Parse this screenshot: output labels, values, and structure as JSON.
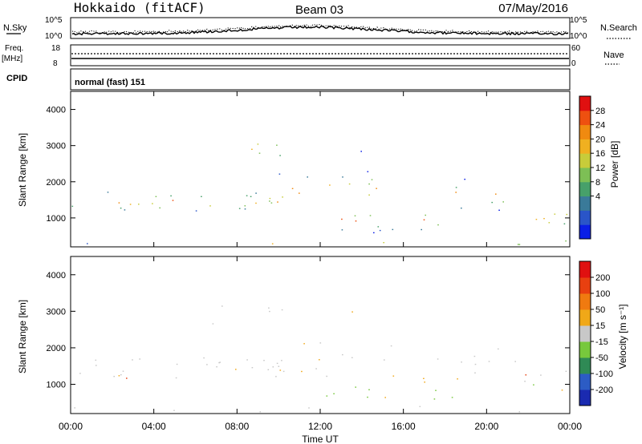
{
  "header": {
    "station": "Hokkaido (fitACF)",
    "beam": "Beam 03",
    "date": "07/May/2016"
  },
  "top_panels": {
    "nsky_label": "N.Sky",
    "nsky_ticks": [
      "10^5",
      "10^0"
    ],
    "nsearch_label": "N.Search",
    "nsearch_ticks": [
      "10^5",
      "10^0"
    ],
    "freq_label": "Freq.",
    "freq_unit": "[MHz]",
    "freq_ticks": [
      "18",
      "8"
    ],
    "nave_label": "Nave",
    "nave_ticks": [
      "60",
      "0"
    ],
    "cpid_label": "CPID",
    "cpid_value": "normal (fast) 151"
  },
  "chart_data": [
    {
      "type": "heatmap",
      "panel": "power",
      "ylabel": "Slant Range [km]",
      "xlabel": "",
      "ylim": [
        200,
        4500
      ],
      "xlim": [
        0,
        24
      ],
      "yticks": [
        1000,
        2000,
        3000,
        4000
      ],
      "xticks": [
        0,
        4,
        8,
        12,
        16,
        20,
        24
      ],
      "colorbar": {
        "label": "Power [dB]",
        "ticks": [
          "28",
          "24",
          "20",
          "16",
          "12",
          "8",
          "4"
        ],
        "colors": [
          "#0a1ee6",
          "#2a55c8",
          "#3a7a99",
          "#47a06a",
          "#7dbf55",
          "#c8cc3a",
          "#f0b020",
          "#f08a10",
          "#ee5010",
          "#e01010"
        ]
      },
      "features": [
        {
          "from_h": 0.0,
          "to_h": 10.0,
          "range_km": [
            1100,
            1800
          ]
        },
        {
          "from_h": 6.8,
          "to_h": 10.2,
          "range_km": [
            2600,
            3300
          ]
        },
        {
          "from_h": 12.2,
          "to_h": 19.0,
          "range_km": [
            600,
            1300
          ]
        },
        {
          "from_h": 21.5,
          "to_h": 24.0,
          "range_km": [
            600,
            1400
          ]
        }
      ]
    },
    {
      "type": "heatmap",
      "panel": "velocity",
      "ylabel": "Slant Range [km]",
      "xlabel": "Time UT",
      "ylim": [
        200,
        4500
      ],
      "xlim": [
        0,
        24
      ],
      "yticks": [
        1000,
        2000,
        3000,
        4000
      ],
      "xticks": [
        0,
        4,
        8,
        12,
        16,
        20,
        24
      ],
      "xtick_labels": [
        "00:00",
        "04:00",
        "08:00",
        "12:00",
        "16:00",
        "20:00",
        "00:00"
      ],
      "colorbar": {
        "label": "Velocity [m s⁻¹]",
        "ticks": [
          "200",
          "100",
          "50",
          "15",
          "-15",
          "-50",
          "-100",
          "-200"
        ],
        "colors": [
          "#1a2ab0",
          "#2c5cc4",
          "#2f8a55",
          "#77c83c",
          "#c8c8c8",
          "#f0a818",
          "#f07a10",
          "#e84010",
          "#e01010"
        ]
      },
      "features": [
        {
          "from_h": 12.8,
          "to_h": 18.8,
          "range_km": [
            500,
            900
          ]
        },
        {
          "from_h": 16.5,
          "to_h": 19.0,
          "range_km": [
            800,
            1400
          ]
        },
        {
          "from_h": 0.0,
          "to_h": 24.0,
          "range_km": [
            900,
            2200
          ]
        }
      ]
    }
  ]
}
